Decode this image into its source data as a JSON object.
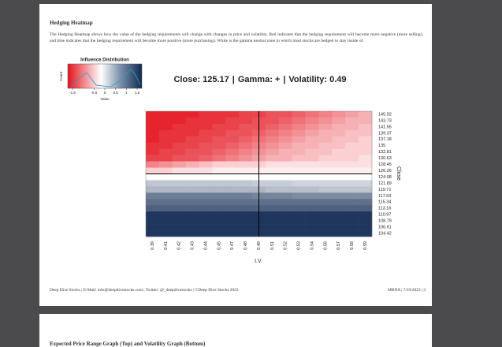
{
  "header": {
    "title": "Hedging Heatmap"
  },
  "paragraph": "The Hedging Heatmap shows how the value of the hedging requirements will change with changes in price and volatility. Red indicates that the hedging requirement will become more negative (more selling), and blue indicates that the hedging requirement will become more positive (more purchasing). White is the gamma neutral zone in which most stocks are hedged to stay inside of.",
  "legend": {
    "title": "Influence Distribution",
    "ticks": [
      -1.5,
      -0.5,
      0,
      0.5,
      1,
      1.5
    ],
    "x_label": "Value",
    "y_label": "Count"
  },
  "summary": {
    "separator": "|",
    "items": [
      {
        "label": "Close:",
        "value": 125.17
      },
      {
        "label": "Gamma:",
        "value": "+"
      },
      {
        "label": "Volatility:",
        "value": 0.49
      }
    ]
  },
  "heatmap": {
    "rows": [
      145.92,
      143.73,
      141.55,
      139.37,
      137.18,
      135,
      132.81,
      130.63,
      128.45,
      126.26,
      124.08,
      121.89,
      119.71,
      117.53,
      115.34,
      113.16,
      110.97,
      108.79,
      106.61,
      104.42
    ],
    "columns": [
      0.39,
      0.41,
      0.42,
      0.43,
      0.44,
      0.45,
      0.47,
      0.48,
      0.49,
      0.51,
      0.52,
      0.53,
      0.54,
      0.56,
      0.57,
      0.58,
      0.59
    ],
    "y_label": "Close",
    "x_label": "I.V.",
    "values": [
      [
        -1.4,
        -1.4,
        -1.4,
        -1.4,
        -1.3,
        -1.3,
        -1.3,
        -1.2,
        -1.2,
        -1.1,
        -1.1,
        -1.0,
        -0.9,
        -0.8,
        -0.7,
        -0.6,
        -0.5
      ],
      [
        -1.4,
        -1.4,
        -1.4,
        -1.3,
        -1.3,
        -1.3,
        -1.2,
        -1.2,
        -1.1,
        -1.1,
        -1.0,
        -0.9,
        -0.8,
        -0.7,
        -0.6,
        -0.5,
        -0.5
      ],
      [
        -1.4,
        -1.4,
        -1.3,
        -1.3,
        -1.3,
        -1.2,
        -1.2,
        -1.1,
        -1.1,
        -1.0,
        -0.9,
        -0.8,
        -0.7,
        -0.6,
        -0.5,
        -0.5,
        -0.4
      ],
      [
        -1.4,
        -1.3,
        -1.3,
        -1.3,
        -1.2,
        -1.2,
        -1.1,
        -1.1,
        -1.0,
        -0.9,
        -0.8,
        -0.7,
        -0.6,
        -0.5,
        -0.5,
        -0.4,
        -0.4
      ],
      [
        -1.4,
        -1.3,
        -1.3,
        -1.2,
        -1.2,
        -1.1,
        -1.1,
        -1.0,
        -0.9,
        -0.8,
        -0.7,
        -0.6,
        -0.5,
        -0.5,
        -0.4,
        -0.4,
        -0.3
      ],
      [
        -1.3,
        -1.3,
        -1.2,
        -1.2,
        -1.1,
        -1.1,
        -1.0,
        -0.9,
        -0.8,
        -0.7,
        -0.6,
        -0.5,
        -0.5,
        -0.4,
        -0.4,
        -0.3,
        -0.3
      ],
      [
        -1.3,
        -1.2,
        -1.2,
        -1.1,
        -1.1,
        -1.0,
        -0.9,
        -0.8,
        -0.7,
        -0.6,
        -0.5,
        -0.5,
        -0.4,
        -0.4,
        -0.3,
        -0.3,
        -0.3
      ],
      [
        -1.2,
        -1.2,
        -1.1,
        -1.1,
        -1.0,
        -0.9,
        -0.8,
        -0.7,
        -0.6,
        -0.5,
        -0.5,
        -0.4,
        -0.4,
        -0.3,
        -0.3,
        -0.3,
        -0.2
      ],
      [
        -0.8,
        -0.7,
        -0.6,
        -0.5,
        -0.4,
        -0.3,
        -0.3,
        -0.3,
        -0.3,
        -0.2,
        -0.2,
        -0.2,
        -0.2,
        -0.2,
        -0.2,
        -0.2,
        -0.2
      ],
      [
        -0.3,
        -0.3,
        -0.2,
        -0.2,
        -0.2,
        -0.1,
        -0.1,
        -0.1,
        -0.1,
        -0.1,
        -0.1,
        -0.1,
        -0.1,
        -0.1,
        -0.1,
        -0.1,
        -0.1
      ],
      [
        0,
        0,
        0,
        0,
        0,
        0,
        0,
        0,
        0,
        0,
        0,
        0,
        0,
        0,
        0,
        0,
        0
      ],
      [
        0.4,
        0.4,
        0.4,
        0.4,
        0.4,
        0.4,
        0.4,
        0.4,
        0.35,
        0.35,
        0.35,
        0.3,
        0.3,
        0.3,
        0.3,
        0.3,
        0.3
      ],
      [
        0.5,
        0.5,
        0.5,
        0.5,
        0.5,
        0.5,
        0.5,
        0.5,
        0.5,
        0.45,
        0.45,
        0.45,
        0.45,
        0.4,
        0.4,
        0.4,
        0.4
      ],
      [
        0.9,
        0.9,
        0.9,
        0.9,
        0.9,
        0.9,
        0.9,
        0.9,
        0.85,
        0.85,
        0.85,
        0.8,
        0.8,
        0.8,
        0.8,
        0.8,
        0.8
      ],
      [
        1.0,
        1.0,
        1.0,
        1.0,
        1.0,
        1.0,
        1.0,
        1.0,
        1.0,
        1.0,
        1.0,
        1.0,
        1.0,
        1.0,
        1.0,
        1.0,
        1.0
      ],
      [
        1.1,
        1.1,
        1.1,
        1.1,
        1.1,
        1.1,
        1.1,
        1.1,
        1.1,
        1.1,
        1.1,
        1.1,
        1.1,
        1.1,
        1.1,
        1.1,
        1.1
      ],
      [
        1.4,
        1.4,
        1.4,
        1.4,
        1.4,
        1.4,
        1.4,
        1.4,
        1.4,
        1.4,
        1.4,
        1.4,
        1.4,
        1.4,
        1.4,
        1.4,
        1.4
      ],
      [
        1.4,
        1.4,
        1.4,
        1.4,
        1.4,
        1.4,
        1.4,
        1.4,
        1.4,
        1.4,
        1.4,
        1.4,
        1.4,
        1.4,
        1.4,
        1.4,
        1.4
      ],
      [
        1.4,
        1.4,
        1.4,
        1.4,
        1.4,
        1.4,
        1.4,
        1.4,
        1.4,
        1.4,
        1.4,
        1.4,
        1.4,
        1.4,
        1.4,
        1.4,
        1.4
      ],
      [
        1.4,
        1.4,
        1.4,
        1.4,
        1.4,
        1.4,
        1.4,
        1.4,
        1.4,
        1.4,
        1.4,
        1.4,
        1.4,
        1.4,
        1.4,
        1.4,
        1.4
      ]
    ]
  },
  "footer": {
    "left": "Deep Dive Stocks | E-Mail: info@deepdivestocks.com | Twitter: @_deepdivestocks | ©Deep Dive Stocks 2023",
    "right": "MRNA | 7/19/2023 | 3"
  },
  "next_page": {
    "title": "Expected Price Range Graph (Top) and Volatility Graph (Bottom)"
  }
}
